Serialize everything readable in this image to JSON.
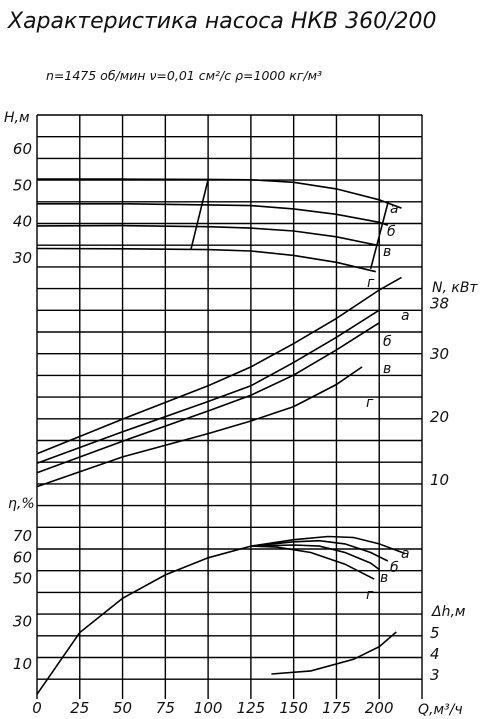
{
  "chart_data": {
    "type": "line",
    "title": "Характеристика насоса НКВ 360/200",
    "subtitle": "n=1475 об/мин   ν=0,01 см²/с   ρ=1000 кг/м³",
    "xlabel": "Q,м³/ч",
    "x_ticks": [
      "0",
      "25",
      "50",
      "75",
      "100",
      "125",
      "150",
      "175",
      "200"
    ],
    "xlim": [
      0,
      225
    ],
    "axes": {
      "H": {
        "label": "H,м",
        "ticks": [
          "30",
          "40",
          "50",
          "60"
        ],
        "ylim": [
          27.5,
          62.5
        ]
      },
      "N": {
        "label": "N, кВт",
        "ticks": [
          "10",
          "20",
          "30",
          "38"
        ],
        "ylim": [
          5,
          40
        ]
      },
      "eta": {
        "label": "η,%",
        "ticks": [
          "10",
          "30",
          "50",
          "60",
          "70"
        ],
        "ylim": [
          0,
          80
        ]
      },
      "dh": {
        "label": "Δh,м",
        "ticks": [
          "3",
          "4",
          "5"
        ]
      }
    },
    "curve_labels": [
      "а",
      "б",
      "в",
      "г"
    ],
    "series": {
      "H": [
        {
          "label": "а",
          "points": [
            [
              0,
              54.2
            ],
            [
              50,
              54.2
            ],
            [
              100,
              54.1
            ],
            [
              125,
              54.0
            ],
            [
              150,
              53.3
            ],
            [
              175,
              51.5
            ],
            [
              200,
              48.5
            ],
            [
              213,
              46.2
            ]
          ]
        },
        {
          "label": "б",
          "points": [
            [
              0,
              47.4
            ],
            [
              50,
              47.4
            ],
            [
              100,
              47.1
            ],
            [
              125,
              46.9
            ],
            [
              150,
              46.0
            ],
            [
              175,
              44.5
            ],
            [
              200,
              42.3
            ],
            [
              205,
              41.5
            ]
          ]
        },
        {
          "label": "в",
          "points": [
            [
              0,
              41.3
            ],
            [
              50,
              41.4
            ],
            [
              100,
              41.1
            ],
            [
              125,
              40.7
            ],
            [
              150,
              39.9
            ],
            [
              175,
              38.3
            ],
            [
              200,
              35.9
            ]
          ]
        },
        {
          "label": "г",
          "points": [
            [
              0,
              35.1
            ],
            [
              50,
              35.0
            ],
            [
              100,
              34.8
            ],
            [
              125,
              34.4
            ],
            [
              150,
              33.2
            ],
            [
              175,
              31.3
            ],
            [
              198,
              28.7
            ]
          ]
        }
      ],
      "N": [
        {
          "label": "а",
          "points": [
            [
              0,
              14.0
            ],
            [
              50,
              19.5
            ],
            [
              100,
              24.8
            ],
            [
              125,
              27.8
            ],
            [
              150,
              31.5
            ],
            [
              175,
              35.5
            ],
            [
              200,
              40.0
            ],
            [
              213,
              42.0
            ]
          ]
        },
        {
          "label": "б",
          "points": [
            [
              0,
              12.5
            ],
            [
              50,
              17.5
            ],
            [
              100,
              22.3
            ],
            [
              125,
              24.8
            ],
            [
              150,
              28.5
            ],
            [
              175,
              32.5
            ],
            [
              200,
              36.8
            ]
          ]
        },
        {
          "label": "в",
          "points": [
            [
              0,
              11.0
            ],
            [
              50,
              16.0
            ],
            [
              100,
              20.8
            ],
            [
              125,
              23.3
            ],
            [
              150,
              26.5
            ],
            [
              175,
              30.5
            ],
            [
              200,
              34.8
            ]
          ]
        },
        {
          "label": "г",
          "points": [
            [
              0,
              8.8
            ],
            [
              50,
              13.5
            ],
            [
              100,
              17.2
            ],
            [
              125,
              19.2
            ],
            [
              150,
              21.5
            ],
            [
              175,
              25.0
            ],
            [
              190,
              27.8
            ]
          ]
        }
      ],
      "eta": [
        {
          "label": "а",
          "points": [
            [
              0,
              0
            ],
            [
              25,
              29
            ],
            [
              50,
              45
            ],
            [
              75,
              56
            ],
            [
              100,
              64
            ],
            [
              125,
              69.5
            ],
            [
              150,
              72.5
            ],
            [
              170,
              74.0
            ],
            [
              185,
              73.5
            ],
            [
              200,
              70.5
            ],
            [
              215,
              66.0
            ]
          ]
        },
        {
          "label": "б",
          "points": [
            [
              125,
              69.5
            ],
            [
              150,
              71.5
            ],
            [
              165,
              72.0
            ],
            [
              180,
              70.5
            ],
            [
              195,
              66.5
            ],
            [
              205,
              62.5
            ]
          ]
        },
        {
          "label": "в",
          "points": [
            [
              125,
              69.5
            ],
            [
              150,
              70.0
            ],
            [
              165,
              69.5
            ],
            [
              180,
              66.5
            ],
            [
              195,
              61.5
            ],
            [
              200,
              58.5
            ]
          ]
        },
        {
          "label": "г",
          "points": [
            [
              125,
              69.5
            ],
            [
              140,
              69.0
            ],
            [
              160,
              66.5
            ],
            [
              180,
              61.0
            ],
            [
              197,
              54.0
            ]
          ]
        }
      ],
      "dh": [
        {
          "label": "",
          "points": [
            [
              137,
              3.0
            ],
            [
              160,
              3.15
            ],
            [
              185,
              3.7
            ],
            [
              200,
              4.3
            ],
            [
              210,
              5.0
            ]
          ]
        }
      ]
    }
  }
}
